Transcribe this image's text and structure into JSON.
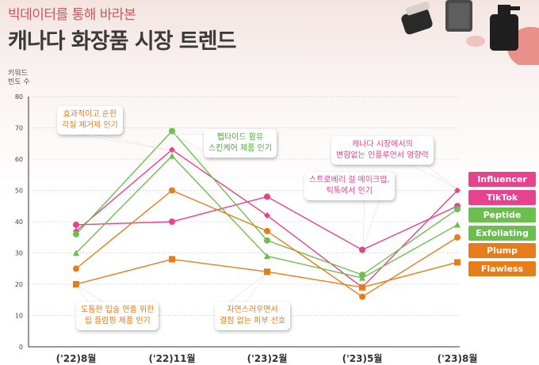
{
  "header": {
    "subtitle": "빅데이터를 통해 바라본",
    "title": "캐나다 화장품 시장 트렌드"
  },
  "icons": {
    "products": "cosmetic-jars-and-bottles-photo"
  },
  "chart_data": {
    "type": "line",
    "ylabel_line1": "키워드",
    "ylabel_line2": "빈도 수",
    "ylim": [
      0,
      80
    ],
    "yticks": [
      0,
      10,
      20,
      30,
      40,
      50,
      60,
      70,
      80
    ],
    "grid": true,
    "legend_position": "right",
    "categories": [
      "('22)8월",
      "('22)11월",
      "('23)2월",
      "('23)5월",
      "('23)8월"
    ],
    "series": [
      {
        "name": "Influencer",
        "color": "#e8418e",
        "marker": "diamond",
        "values": [
          37,
          63,
          42,
          19,
          50
        ]
      },
      {
        "name": "TikTok",
        "color": "#e8418e",
        "marker": "circle",
        "values": [
          39,
          40,
          48,
          31,
          45
        ]
      },
      {
        "name": "Peptide",
        "color": "#6cbf4f",
        "marker": "circle",
        "values": [
          36,
          69,
          34,
          23,
          44
        ]
      },
      {
        "name": "Exfoliating",
        "color": "#6cbf4f",
        "marker": "triangle",
        "values": [
          30,
          61,
          29,
          22,
          39
        ]
      },
      {
        "name": "Plump",
        "color": "#e67c1a",
        "marker": "circle",
        "values": [
          25,
          50,
          37,
          16,
          35
        ]
      },
      {
        "name": "Flawless",
        "color": "#e67c1a",
        "marker": "square",
        "values": [
          20,
          28,
          24,
          19,
          27
        ]
      }
    ],
    "annotations": [
      {
        "id": "a1",
        "line1": "효과적이고 순한",
        "line2": "각질 제거제 인기",
        "color": "#e67c1a"
      },
      {
        "id": "a2",
        "line1": "펩타이드 함유",
        "line2": "스킨케어 제품 인기",
        "color": "#4ea83a"
      },
      {
        "id": "a3",
        "line1": "캐나다 시장에서의",
        "line2": "변함없는 인플루언서 영향력",
        "color": "#e8418e"
      },
      {
        "id": "a4",
        "line1": "스트로베리 걸 메이크업,",
        "line2": "틱톡에서 인기",
        "color": "#e8418e"
      },
      {
        "id": "a5",
        "line1": "도톰한 입술 연출 위한",
        "line2": "립 플럼핑 제품 인기",
        "color": "#e67c1a"
      },
      {
        "id": "a6",
        "line1": "자연스러우면서",
        "line2": "결점 없는 피부 선호",
        "color": "#e67c1a"
      }
    ]
  }
}
